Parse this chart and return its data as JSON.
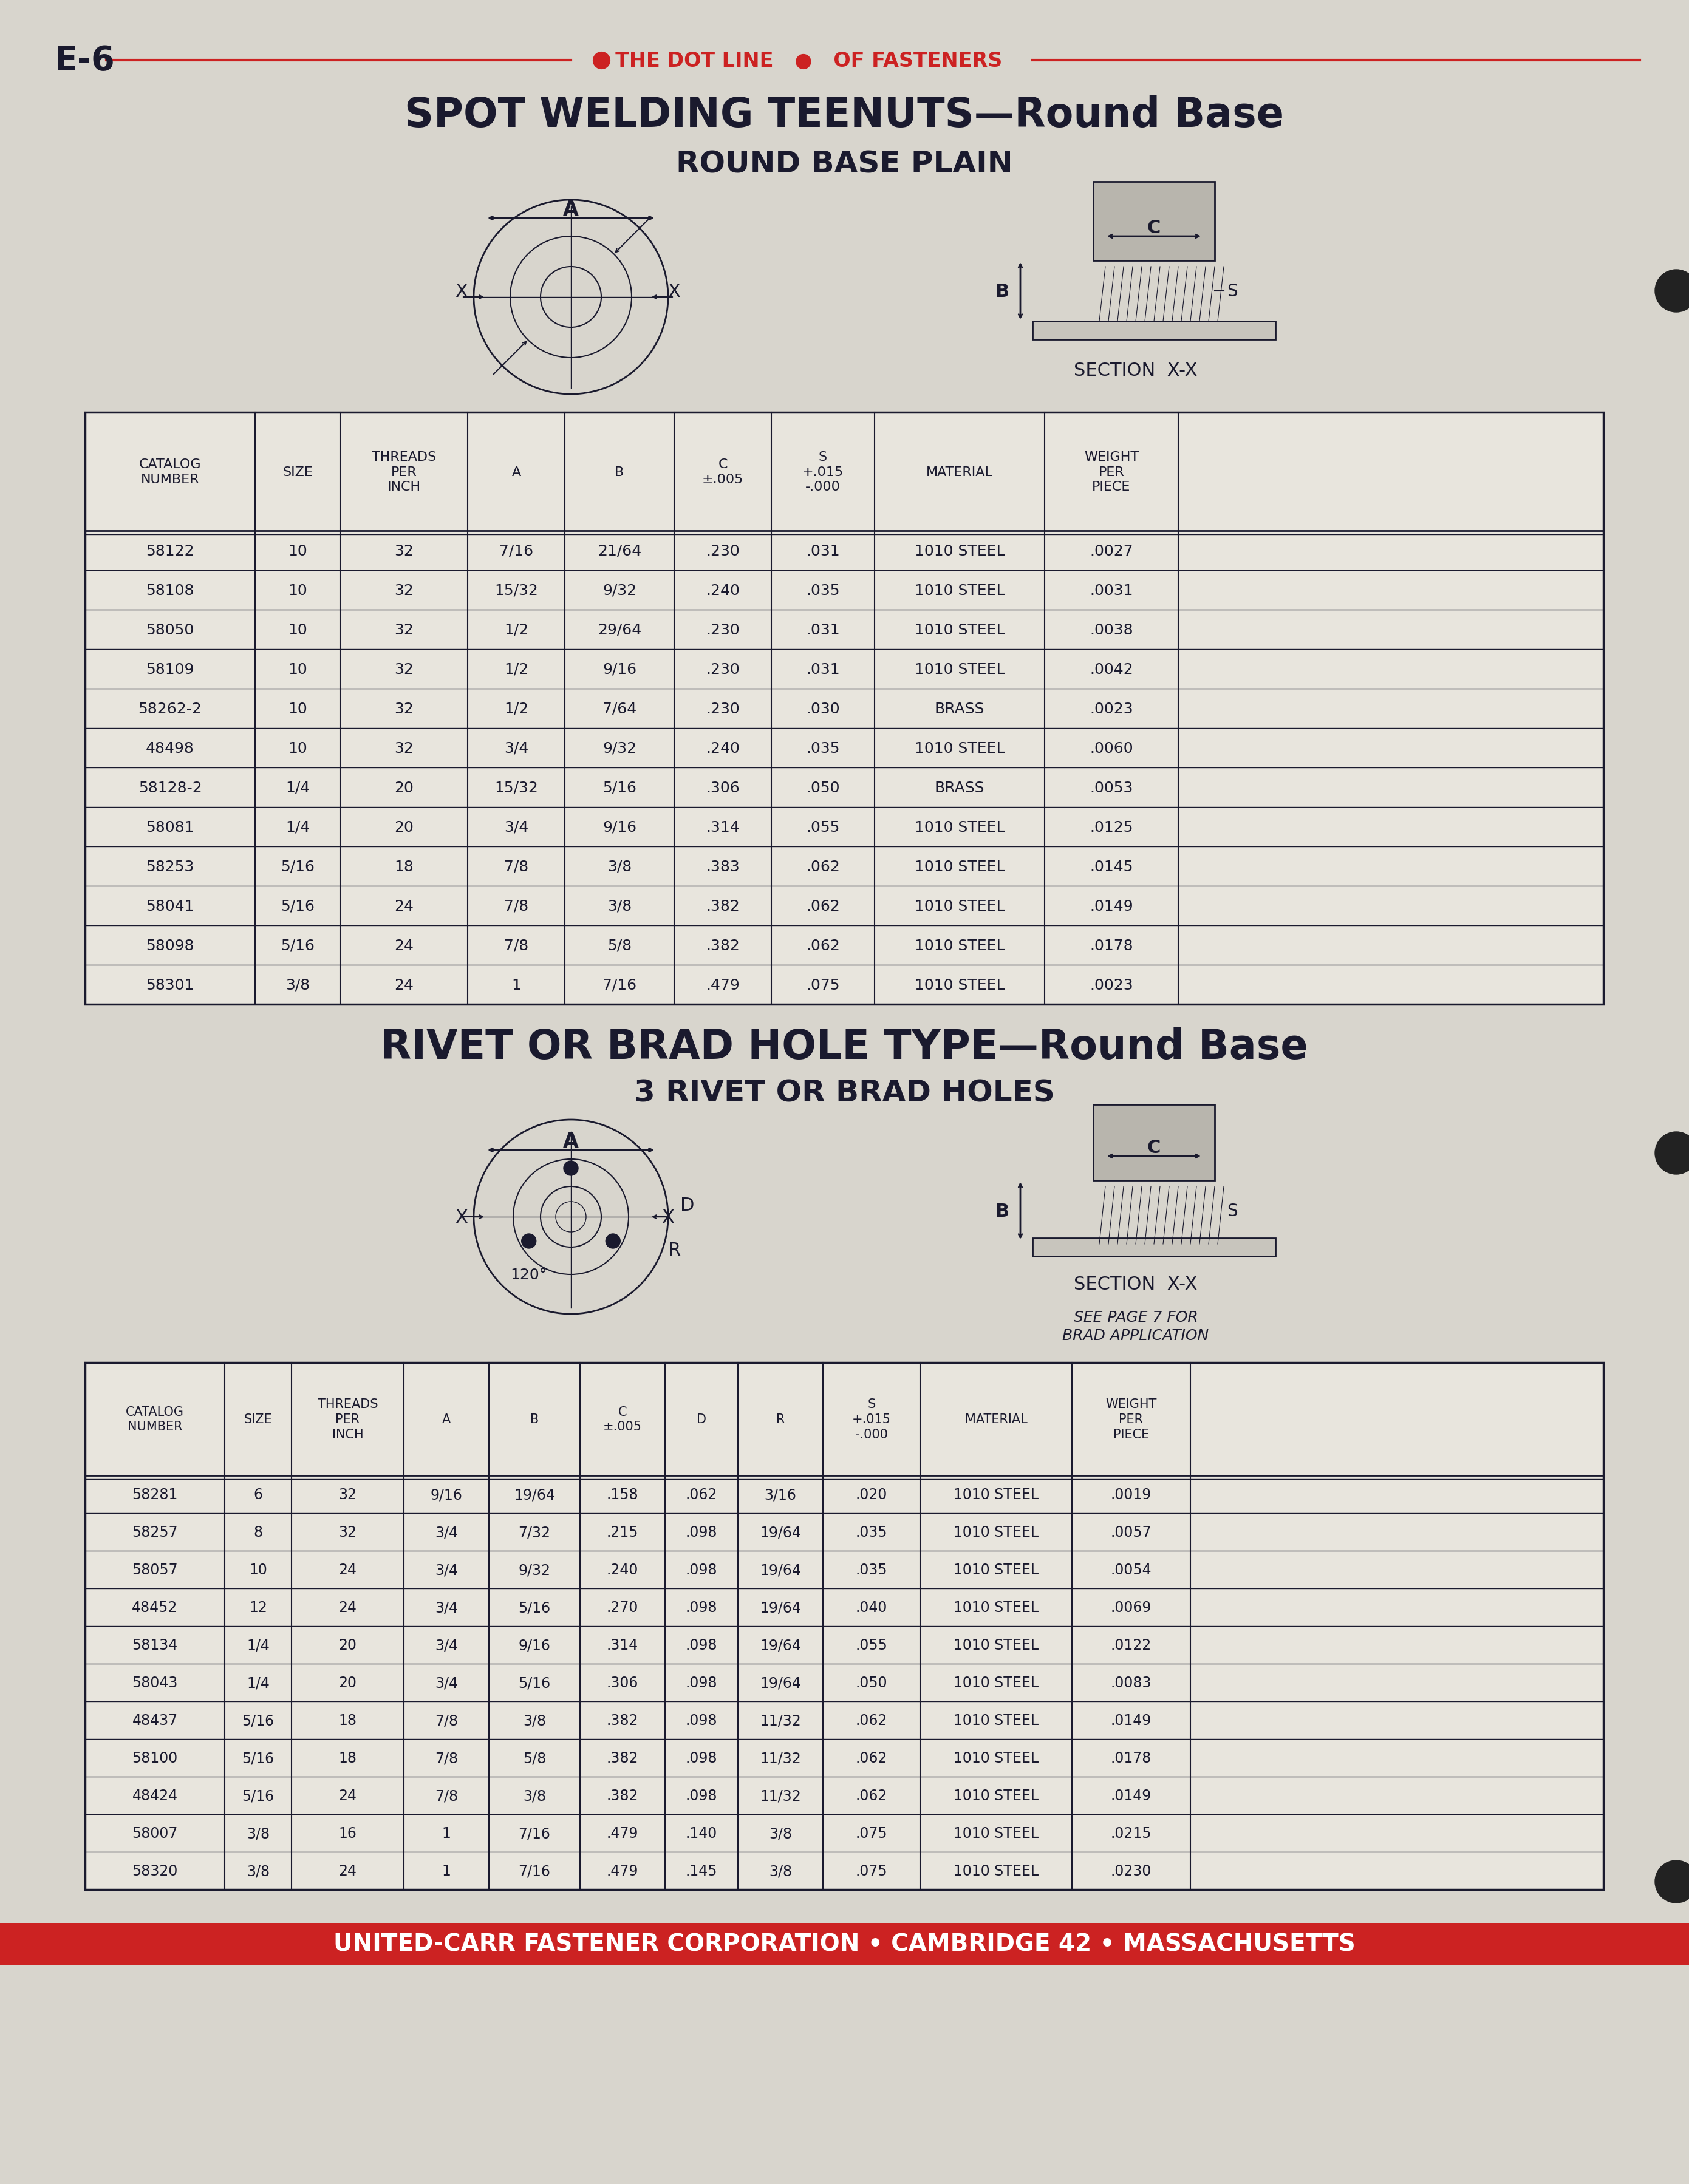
{
  "page_label": "E-6",
  "header_line": "THE DOT LINE ● OF FASTENERS",
  "title1": "SPOT WELDING TEENUTS—Round Base",
  "title2": "ROUND BASE PLAIN",
  "table1_headers": [
    "CATALOG\nNUMBER",
    "SIZE",
    "THREADS\nPER\nINCH",
    "A",
    "B",
    "C\n±.005",
    "S\n+.015\n-.000",
    "MATERIAL",
    "WEIGHT\nPER\nPIECE"
  ],
  "table1_data": [
    [
      "58122",
      "10",
      "32",
      "7/16",
      "21/64",
      ".230",
      ".031",
      "1010 STEEL",
      ".0027"
    ],
    [
      "58108",
      "10",
      "32",
      "15/32",
      "9/32",
      ".240",
      ".035",
      "1010 STEEL",
      ".0031"
    ],
    [
      "58050",
      "10",
      "32",
      "1/2",
      "29/64",
      ".230",
      ".031",
      "1010 STEEL",
      ".0038"
    ],
    [
      "58109",
      "10",
      "32",
      "1/2",
      "9/16",
      ".230",
      ".031",
      "1010 STEEL",
      ".0042"
    ],
    [
      "58262-2",
      "10",
      "32",
      "1/2",
      "7/64",
      ".230",
      ".030",
      "BRASS",
      ".0023"
    ],
    [
      "48498",
      "10",
      "32",
      "3/4",
      "9/32",
      ".240",
      ".035",
      "1010 STEEL",
      ".0060"
    ],
    [
      "58128-2",
      "1/4",
      "20",
      "15/32",
      "5/16",
      ".306",
      ".050",
      "BRASS",
      ".0053"
    ],
    [
      "58081",
      "1/4",
      "20",
      "3/4",
      "9/16",
      ".314",
      ".055",
      "1010 STEEL",
      ".0125"
    ],
    [
      "58253",
      "5/16",
      "18",
      "7/8",
      "3/8",
      ".383",
      ".062",
      "1010 STEEL",
      ".0145"
    ],
    [
      "58041",
      "5/16",
      "24",
      "7/8",
      "3/8",
      ".382",
      ".062",
      "1010 STEEL",
      ".0149"
    ],
    [
      "58098",
      "5/16",
      "24",
      "7/8",
      "5/8",
      ".382",
      ".062",
      "1010 STEEL",
      ".0178"
    ],
    [
      "58301",
      "3/8",
      "24",
      "1",
      "7/16",
      ".479",
      ".075",
      "1010 STEEL",
      ".0023"
    ]
  ],
  "section2_title1": "RIVET OR BRAD HOLE TYPE—Round Base",
  "section2_title2": "3 RIVET OR BRAD HOLES",
  "table2_headers": [
    "CATALOG\nNUMBER",
    "SIZE",
    "THREADS\nPER\nINCH",
    "A",
    "B",
    "C\n±.005",
    "D",
    "R",
    "S\n+.015\n-.000",
    "MATERIAL",
    "WEIGHT\nPER\nPIECE"
  ],
  "table2_data": [
    [
      "58281",
      "6",
      "32",
      "9/16",
      "19/64",
      ".158",
      ".062",
      "3/16",
      ".020",
      "1010 STEEL",
      ".0019"
    ],
    [
      "58257",
      "8",
      "32",
      "3/4",
      "7/32",
      ".215",
      ".098",
      "19/64",
      ".035",
      "1010 STEEL",
      ".0057"
    ],
    [
      "58057",
      "10",
      "24",
      "3/4",
      "9/32",
      ".240",
      ".098",
      "19/64",
      ".035",
      "1010 STEEL",
      ".0054"
    ],
    [
      "48452",
      "12",
      "24",
      "3/4",
      "5/16",
      ".270",
      ".098",
      "19/64",
      ".040",
      "1010 STEEL",
      ".0069"
    ],
    [
      "58134",
      "1/4",
      "20",
      "3/4",
      "9/16",
      ".314",
      ".098",
      "19/64",
      ".055",
      "1010 STEEL",
      ".0122"
    ],
    [
      "58043",
      "1/4",
      "20",
      "3/4",
      "5/16",
      ".306",
      ".098",
      "19/64",
      ".050",
      "1010 STEEL",
      ".0083"
    ],
    [
      "48437",
      "5/16",
      "18",
      "7/8",
      "3/8",
      ".382",
      ".098",
      "11/32",
      ".062",
      "1010 STEEL",
      ".0149"
    ],
    [
      "58100",
      "5/16",
      "18",
      "7/8",
      "5/8",
      ".382",
      ".098",
      "11/32",
      ".062",
      "1010 STEEL",
      ".0178"
    ],
    [
      "48424",
      "5/16",
      "24",
      "7/8",
      "3/8",
      ".382",
      ".098",
      "11/32",
      ".062",
      "1010 STEEL",
      ".0149"
    ],
    [
      "58007",
      "3/8",
      "16",
      "1",
      "7/16",
      ".479",
      ".140",
      "3/8",
      ".075",
      "1010 STEEL",
      ".0215"
    ],
    [
      "58320",
      "3/8",
      "24",
      "1",
      "7/16",
      ".479",
      ".145",
      "3/8",
      ".075",
      "1010 STEEL",
      ".0230"
    ]
  ],
  "footer": "UNITED-CARR FASTENER CORPORATION • CAMBRIDGE 42 • MASSACHUSETTS",
  "bg_color": "#d8d5cd",
  "text_color": "#1a1a2e",
  "red_color": "#cc2222",
  "table_bg": "#e8e5dd"
}
